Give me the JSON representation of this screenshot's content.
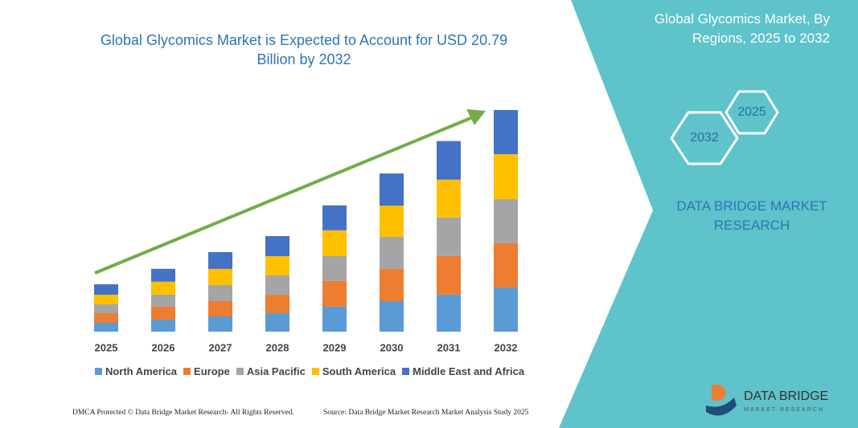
{
  "chart_data": {
    "type": "bar",
    "stacked": true,
    "title": "Global Glycomics Market is Expected to Account for USD 20.79 Billion by 2032",
    "categories": [
      "2025",
      "2026",
      "2027",
      "2028",
      "2029",
      "2030",
      "2031",
      "2032"
    ],
    "series": [
      {
        "name": "North America",
        "color": "#5b9bd5",
        "values": [
          0.83,
          1.13,
          1.43,
          1.73,
          2.34,
          2.86,
          3.47,
          4.14
        ]
      },
      {
        "name": "Europe",
        "color": "#ed7d31",
        "values": [
          0.9,
          1.21,
          1.43,
          1.73,
          2.41,
          3.01,
          3.62,
          4.14
        ]
      },
      {
        "name": "Asia Pacific",
        "color": "#a5a5a5",
        "values": [
          0.83,
          1.13,
          1.51,
          1.81,
          2.34,
          3.01,
          3.62,
          4.14
        ]
      },
      {
        "name": "South America",
        "color": "#ffc000",
        "values": [
          0.9,
          1.21,
          1.51,
          1.81,
          2.41,
          2.94,
          3.54,
          4.22
        ]
      },
      {
        "name": "Middle East and Africa",
        "color": "#4472c4",
        "values": [
          0.98,
          1.21,
          1.58,
          1.88,
          2.34,
          3.01,
          3.62,
          4.14
        ]
      }
    ],
    "legend": "bottom"
  },
  "panel": {
    "title": "Global Glycomics Market, By Regions, 2025 to 2032",
    "hex_large": "2032",
    "hex_small": "2025",
    "brand": "DATA BRIDGE MARKET RESEARCH"
  },
  "logo": {
    "name": "DATA BRIDGE",
    "tagline": "MARKET RESEARCH"
  },
  "footer": {
    "left": "DMCA Protected © Data Bridge Market Research- All Rights Reserved.",
    "right": "Source: Data Bridge Market Research Market Analysis Study 2025"
  }
}
